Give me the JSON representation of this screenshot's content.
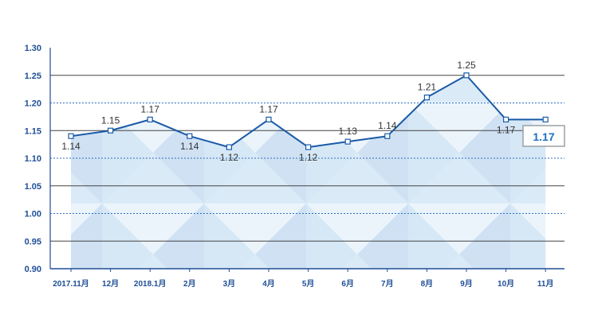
{
  "chart_data": {
    "type": "line",
    "title": "",
    "xlabel": "",
    "ylabel": "",
    "categories": [
      "2017.11月",
      "12月",
      "2018.1月",
      "2月",
      "3月",
      "4月",
      "5月",
      "6月",
      "7月",
      "8月",
      "9月",
      "10月",
      "11月"
    ],
    "values": [
      1.14,
      1.15,
      1.17,
      1.14,
      1.12,
      1.17,
      1.12,
      1.13,
      1.14,
      1.21,
      1.25,
      1.17,
      1.17
    ],
    "value_labels": [
      "1.14",
      "1.15",
      "1.17",
      "1.14",
      "1.12",
      "1.17",
      "1.12",
      "1.13",
      "1.14",
      "1.21",
      "1.25",
      "1.17",
      ""
    ],
    "ylim": [
      0.9,
      1.3
    ],
    "yticks": [
      "0.90",
      "0.95",
      "1.00",
      "1.05",
      "1.10",
      "1.15",
      "1.20",
      "1.25",
      "1.30"
    ],
    "grid": true,
    "highlight_value": "1.17",
    "colors": {
      "line": "#1a5aa8",
      "axis": "#1f4e96",
      "grid_solid": "#444444",
      "grid_dotted": "#2f6fc0",
      "area_fill": "#d4e6f7",
      "tick_text": "#1f4e96",
      "badge_text": "#1f6fbf",
      "badge_border": "#9aa0a6"
    }
  }
}
